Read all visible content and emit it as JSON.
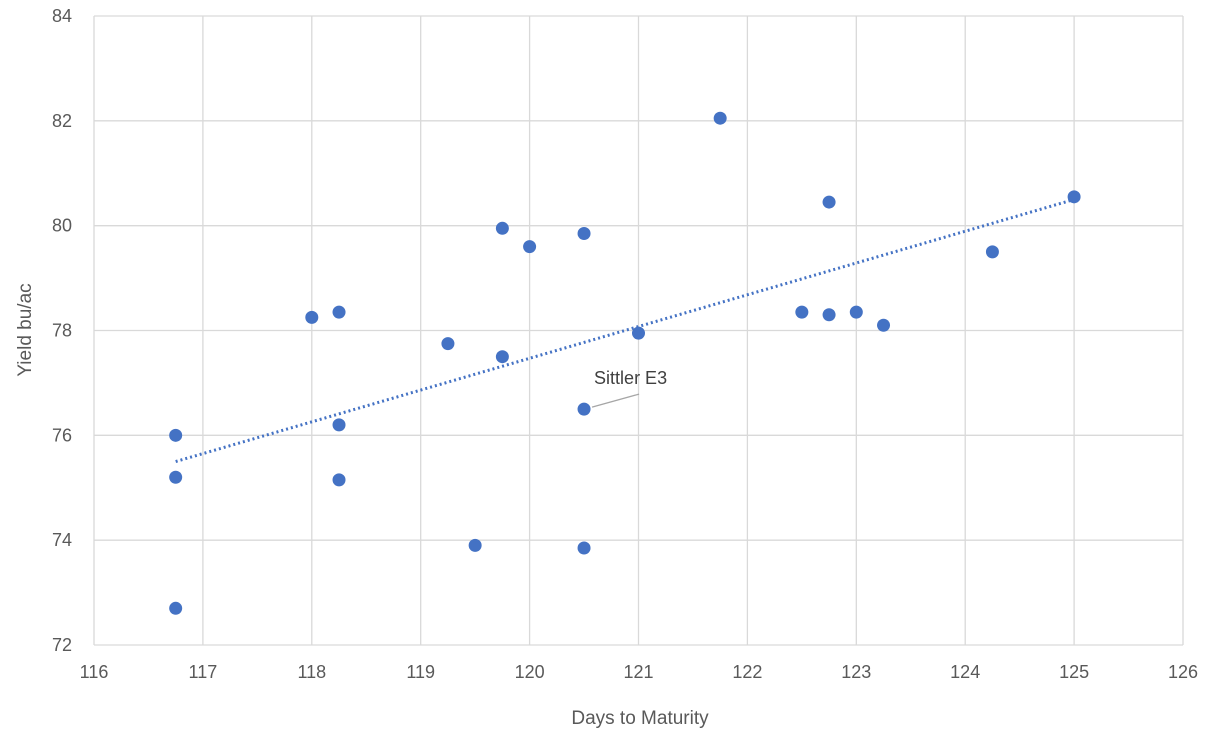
{
  "chart_data": {
    "type": "scatter",
    "xlabel": "Days to Maturity",
    "ylabel": "Yield bu/ac",
    "xlim": [
      116,
      126
    ],
    "ylim": [
      72,
      84
    ],
    "x_ticks": [
      "116",
      "117",
      "118",
      "119",
      "120",
      "121",
      "122",
      "123",
      "124",
      "125",
      "126"
    ],
    "y_ticks": [
      "72",
      "74",
      "76",
      "78",
      "80",
      "82",
      "84"
    ],
    "grid": true,
    "point_color": "#4472C4",
    "series": [
      {
        "points": [
          {
            "x": 116.75,
            "y": 76.0
          },
          {
            "x": 116.75,
            "y": 75.2
          },
          {
            "x": 116.75,
            "y": 72.7
          },
          {
            "x": 118.0,
            "y": 78.25
          },
          {
            "x": 118.25,
            "y": 78.35
          },
          {
            "x": 118.25,
            "y": 76.2
          },
          {
            "x": 118.25,
            "y": 75.15
          },
          {
            "x": 119.25,
            "y": 77.75
          },
          {
            "x": 119.5,
            "y": 73.9
          },
          {
            "x": 119.75,
            "y": 79.95
          },
          {
            "x": 119.75,
            "y": 77.5
          },
          {
            "x": 120.0,
            "y": 79.6
          },
          {
            "x": 120.5,
            "y": 79.85
          },
          {
            "x": 120.5,
            "y": 76.5
          },
          {
            "x": 120.5,
            "y": 73.85
          },
          {
            "x": 121.0,
            "y": 77.95
          },
          {
            "x": 121.75,
            "y": 82.05
          },
          {
            "x": 122.5,
            "y": 78.35
          },
          {
            "x": 122.75,
            "y": 80.45
          },
          {
            "x": 122.75,
            "y": 78.3
          },
          {
            "x": 123.0,
            "y": 78.35
          },
          {
            "x": 123.25,
            "y": 78.1
          },
          {
            "x": 124.25,
            "y": 79.5
          },
          {
            "x": 125.0,
            "y": 80.55
          }
        ]
      }
    ],
    "trendline": {
      "style": "dotted",
      "x": [
        116.75,
        125.0
      ],
      "y": [
        75.5,
        80.5
      ]
    },
    "annotations": [
      {
        "text": "Sittler E3",
        "x": 120.5,
        "y": 76.5
      }
    ]
  }
}
